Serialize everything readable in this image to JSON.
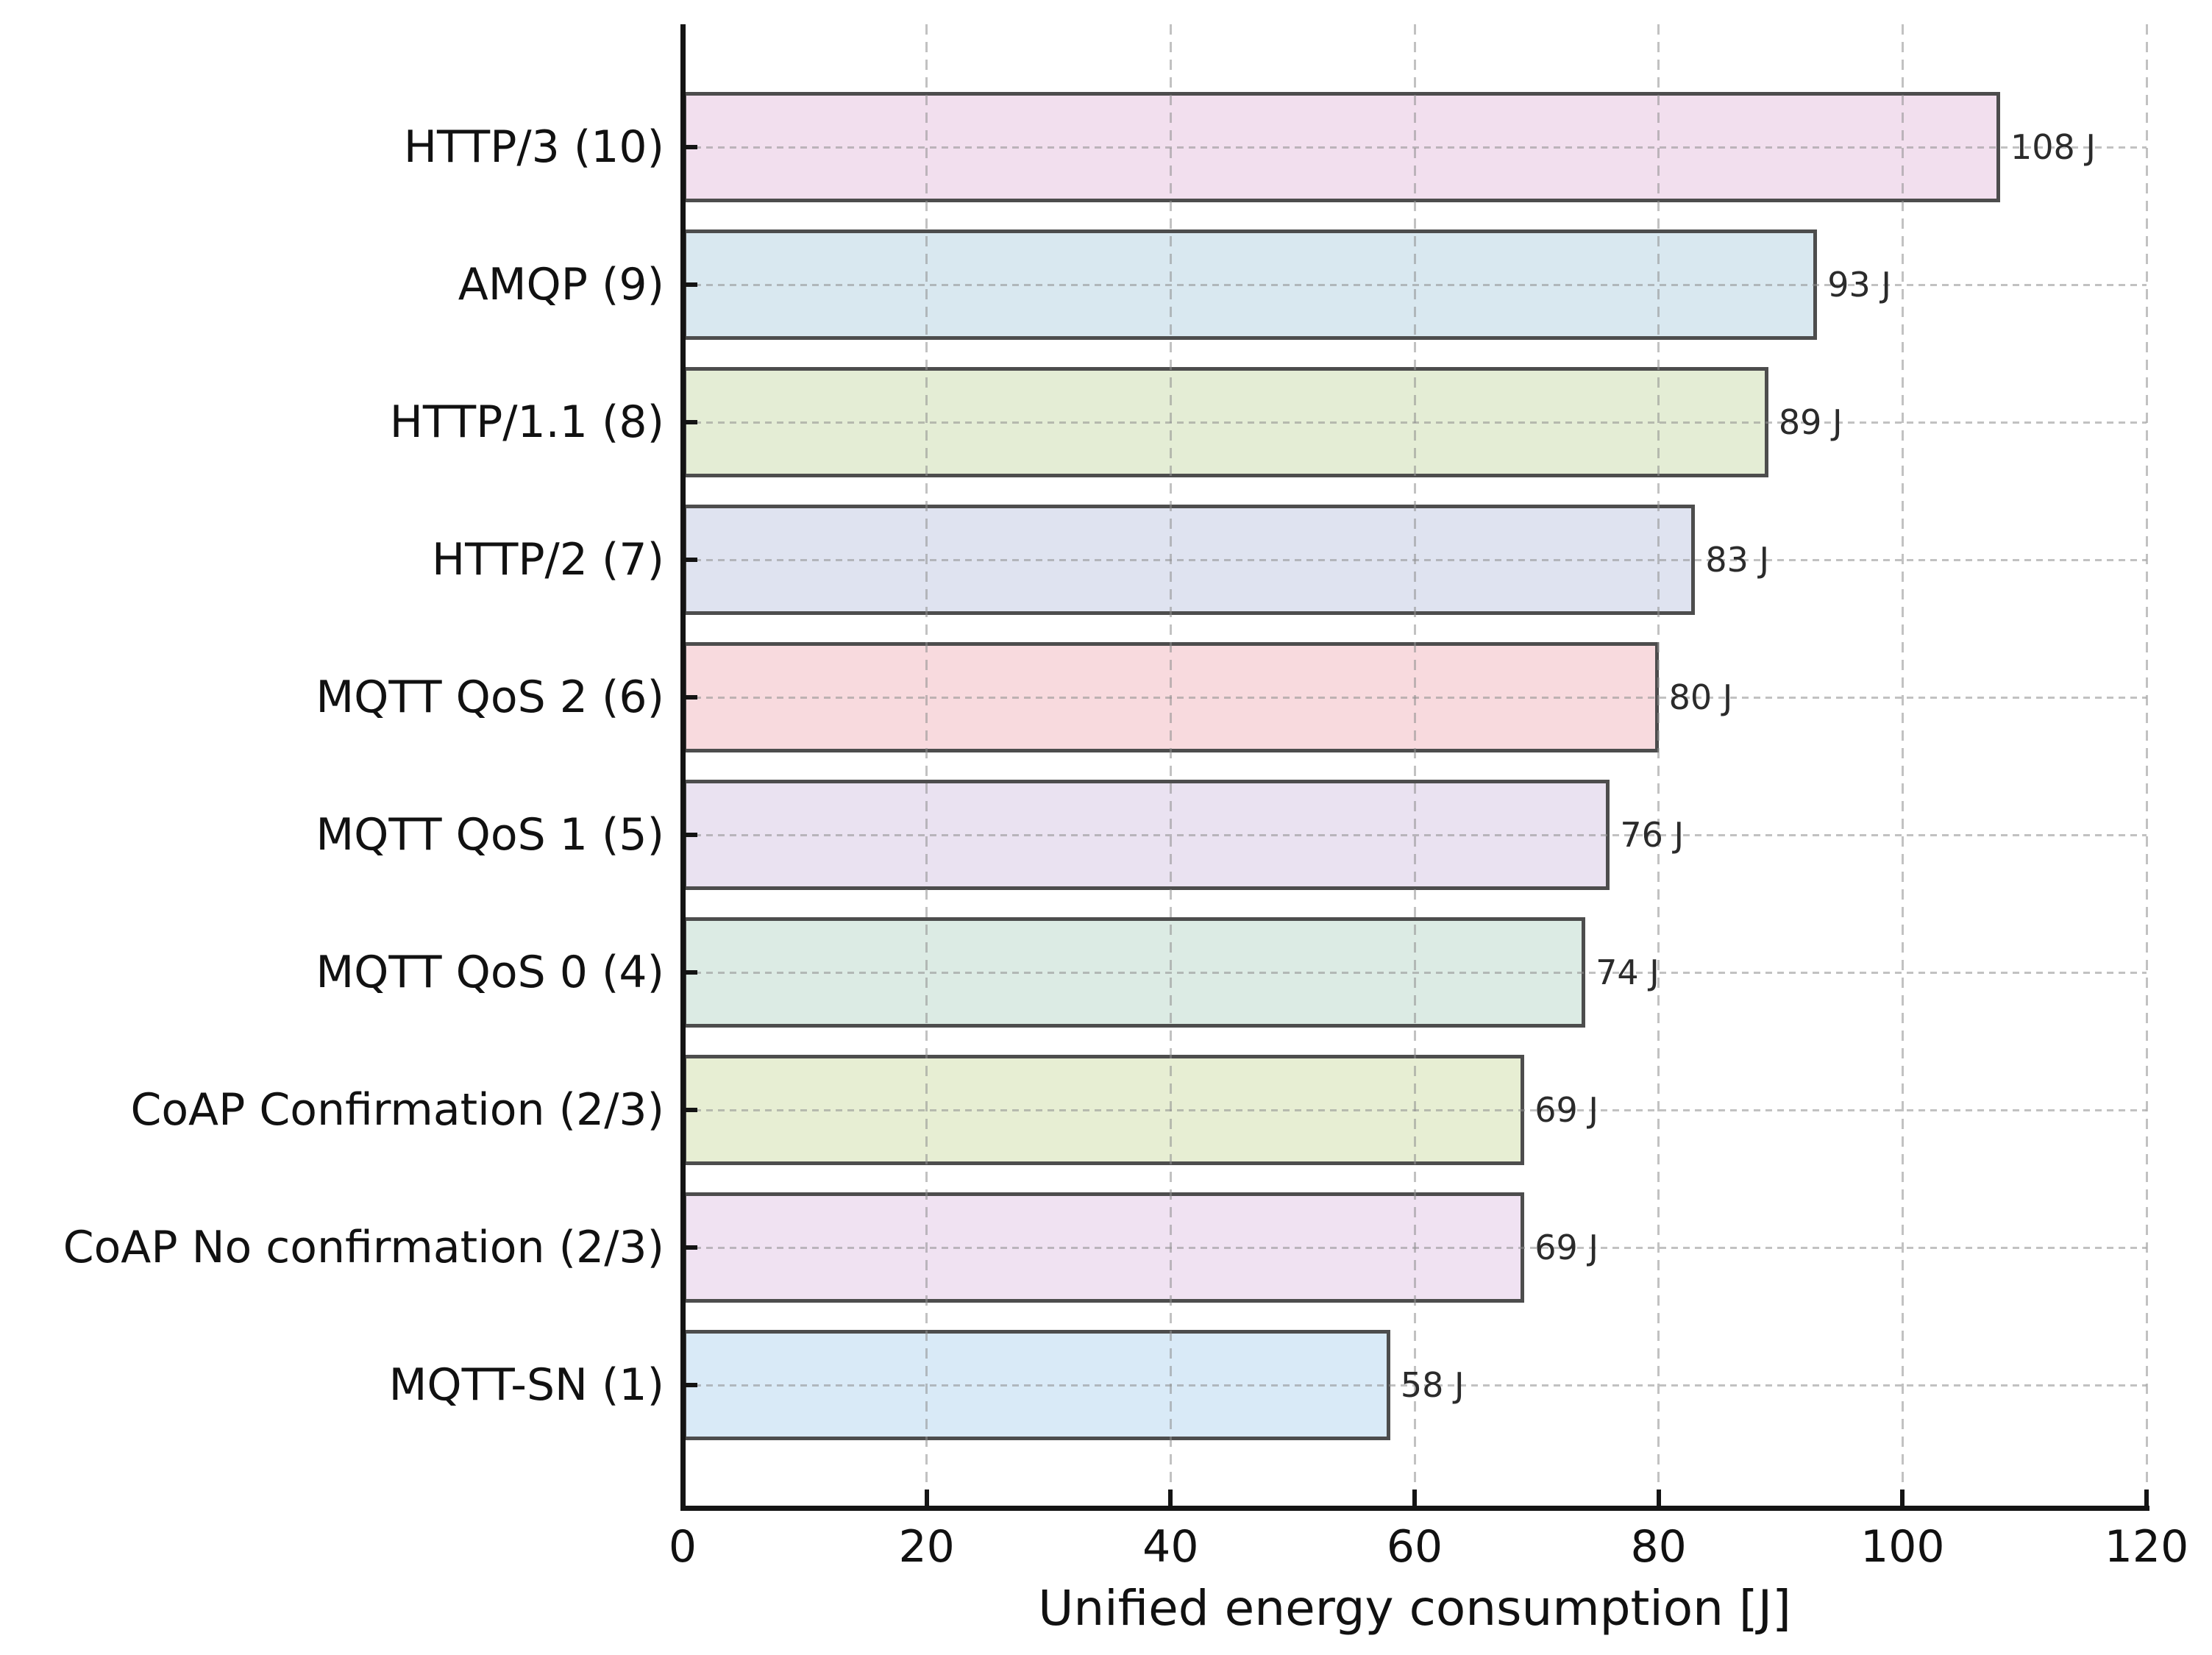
{
  "figure": {
    "background_color": "#ffffff"
  },
  "chart_data": {
    "type": "bar",
    "orientation": "horizontal",
    "title": "",
    "xlabel": "Unified energy consumption [J]",
    "ylabel": "",
    "unit": "J",
    "xlim": [
      0,
      120
    ],
    "xticks": [
      0,
      20,
      40,
      60,
      80,
      100,
      120
    ],
    "xtick_labels": [
      "0",
      "20",
      "40",
      "60",
      "80",
      "100",
      "120"
    ],
    "grid": true,
    "grid_style": "dashed",
    "legend": false,
    "categories": [
      "HTTP/3 (10)",
      "AMQP (9)",
      "HTTP/1.1 (8)",
      "HTTP/2 (7)",
      "MQTT QoS 2 (6)",
      "MQTT QoS 1 (5)",
      "MQTT QoS 0 (4)",
      "CoAP Confirmation (2/3)",
      "CoAP No confirmation (2/3)",
      "MQTT-SN (1)"
    ],
    "values": [
      108,
      93,
      89,
      83,
      80,
      76,
      74,
      69,
      69,
      58
    ],
    "value_labels": [
      "108 J",
      "93 J",
      "89 J",
      "83 J",
      "80 J",
      "76 J",
      "74 J",
      "69 J",
      "69 J",
      "58 J"
    ],
    "bar_colors": [
      "#f2dfee",
      "#d9e8f0",
      "#e4edd5",
      "#dfe3f0",
      "#f8dade",
      "#eae2f1",
      "#dcebe4",
      "#e7eed3",
      "#f0e2f2",
      "#d9eaf7"
    ],
    "bar_edge_color": "#4d4d4d",
    "grid_color": "#8f8f8f",
    "axis_color": "#141414",
    "tick_label_color": "#111111",
    "value_label_color": "#2b2b2b"
  }
}
